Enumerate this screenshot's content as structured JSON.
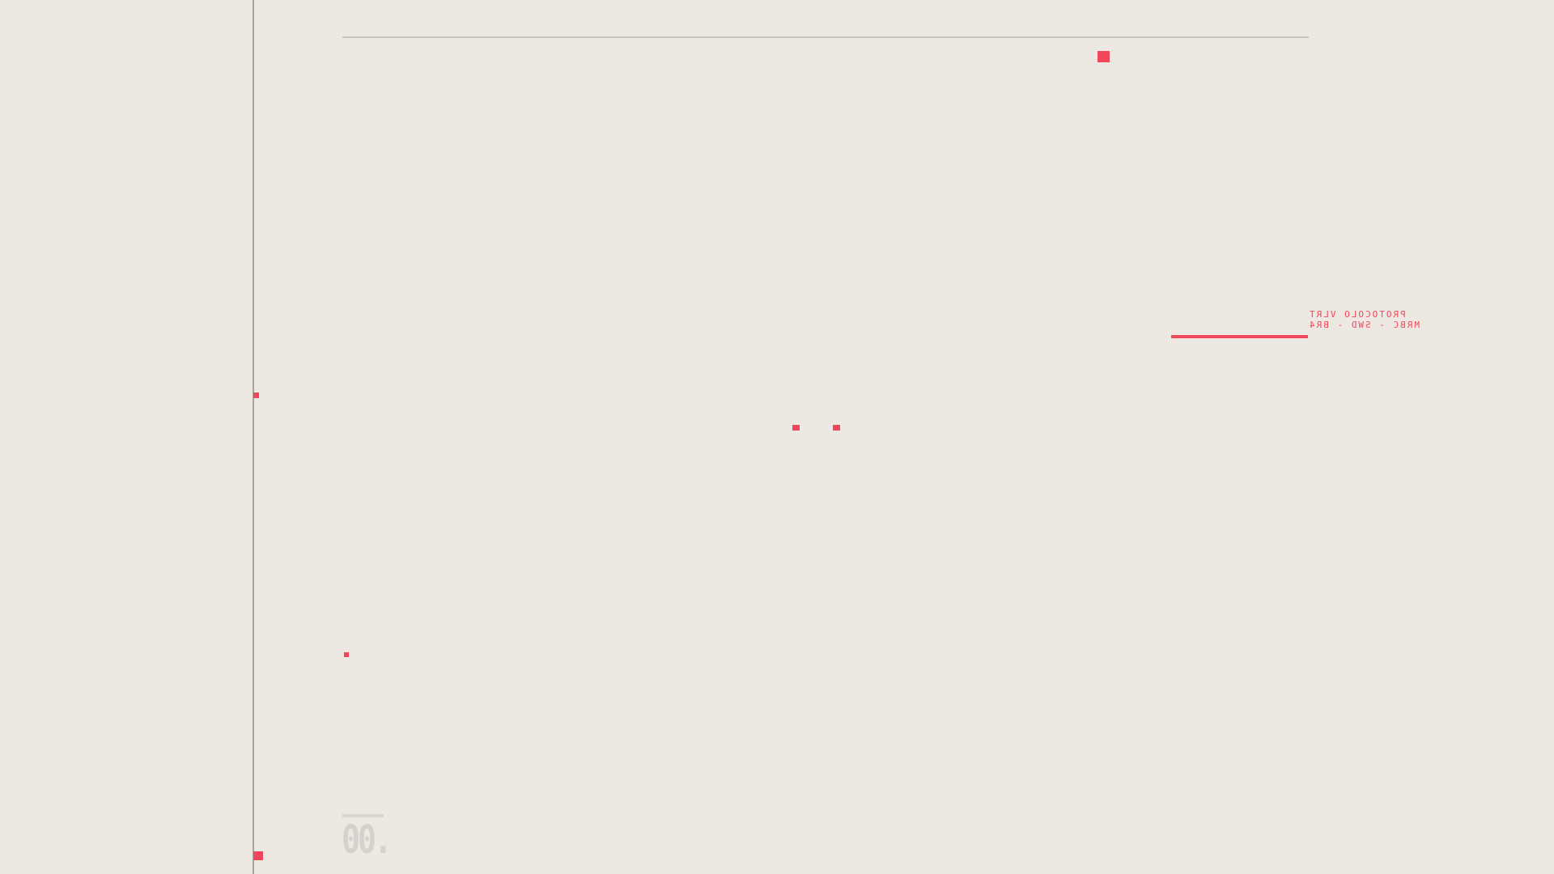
{
  "protocol_label": {
    "line1": "PROTOCOLO VLRT",
    "line2": "MRBC - SWD - BR4"
  },
  "section_counter": "00.",
  "colors": {
    "background": "#ede8e2",
    "accent": "#f0485a",
    "rail": "#a8a4a1",
    "muted": "#d6d1cc"
  }
}
